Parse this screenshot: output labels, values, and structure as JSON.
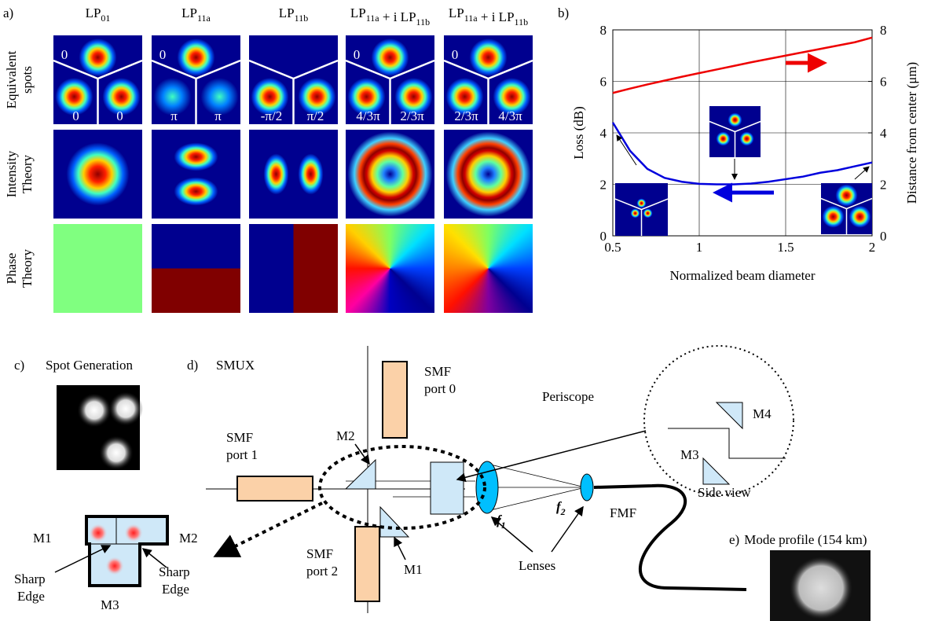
{
  "panel_a": {
    "label": "a)",
    "columns": [
      [
        {
          "text": "LP",
          "sub": "01"
        }
      ],
      [
        {
          "text": "LP",
          "sub": "11a"
        }
      ],
      [
        {
          "text": "LP",
          "sub": "11b"
        }
      ],
      [
        {
          "text": "LP",
          "sub": "11a"
        },
        {
          "text": " + i LP",
          "sub": "11b"
        }
      ],
      [
        {
          "text": "LP",
          "sub": "11a"
        },
        {
          "text": " + i LP",
          "sub": "11b"
        }
      ]
    ],
    "rows": [
      [
        "Equivalent",
        "spots"
      ],
      [
        "Intensity",
        "Theory"
      ],
      [
        "Phase",
        "Theory"
      ]
    ],
    "spot_phases": [
      {
        "top": "0",
        "left": "0",
        "right": "0"
      },
      {
        "top": "0",
        "left": "π",
        "right": "π"
      },
      {
        "left": "-π/2",
        "right": "π/2"
      },
      {
        "top": "0",
        "left": "4/3π",
        "right": "2/3π"
      },
      {
        "top": "0",
        "left": "2/3π",
        "right": "4/3π"
      }
    ]
  },
  "chart_data": {
    "type": "line",
    "panel_label": "b)",
    "x": [
      0.5,
      0.6,
      0.7,
      0.8,
      0.9,
      1.0,
      1.1,
      1.2,
      1.3,
      1.4,
      1.5,
      1.6,
      1.7,
      1.8,
      1.9,
      2.0
    ],
    "series": [
      {
        "color": "#0000dd",
        "values": [
          4.4,
          3.3,
          2.6,
          2.25,
          2.1,
          2.02,
          2.0,
          2.0,
          2.03,
          2.1,
          2.2,
          2.3,
          2.45,
          2.55,
          2.7,
          2.85
        ]
      },
      {
        "color": "#ee0000",
        "axis": "y2",
        "values": [
          5.55,
          5.72,
          5.88,
          6.03,
          6.18,
          6.32,
          6.46,
          6.6,
          6.74,
          6.87,
          7.0,
          7.13,
          7.26,
          7.39,
          7.52,
          7.7
        ]
      }
    ],
    "xlim": [
      0.5,
      2
    ],
    "xticks": [
      0.5,
      1,
      1.5,
      2
    ],
    "ylim": [
      0,
      8
    ],
    "yticks": [
      0,
      2,
      4,
      6,
      8
    ],
    "y2lim": [
      0,
      8
    ],
    "y2ticks": [
      0,
      2,
      4,
      6,
      8
    ],
    "xlabel": "Normalized beam diameter",
    "ylabel": "Loss (dB)",
    "y2label": "Distance from center (μm)",
    "grid": true
  },
  "panel_c": {
    "label": "c)",
    "title": "Spot Generation",
    "mirrors": [
      "M1",
      "M2",
      "M3"
    ],
    "edges": [
      [
        "Sharp",
        "Edge"
      ],
      [
        "Sharp",
        "Edge"
      ]
    ]
  },
  "panel_d": {
    "label": "d)",
    "title": "SMUX",
    "ports": [
      [
        "SMF",
        "port 0"
      ],
      [
        "SMF",
        "port 1"
      ],
      [
        "SMF",
        "port 2"
      ]
    ],
    "mirrors": [
      "M1",
      "M2",
      "M3",
      "M4"
    ],
    "side_view": "Side view",
    "periscope": "Periscope",
    "lenses": "Lenses",
    "fmf": "FMF",
    "focal": [
      {
        "text": "f",
        "sub": "1"
      },
      {
        "text": "f",
        "sub": "2"
      }
    ]
  },
  "panel_e": {
    "label": "e)",
    "title": "Mode profile (154 km)"
  }
}
